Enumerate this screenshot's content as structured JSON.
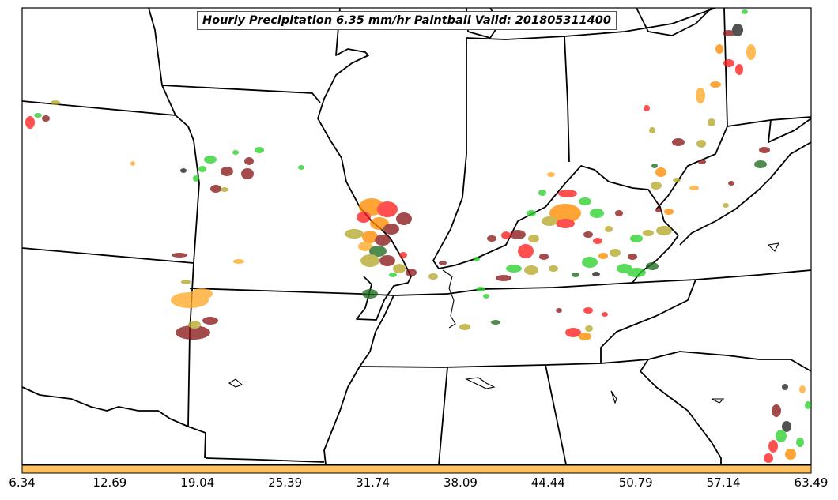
{
  "title": "Hourly Precipitation 6.35 mm/hr Paintball Valid: 201805311400",
  "colorbar": {
    "fill_color": "#ffc061",
    "tick_labels": [
      "6.34",
      "12.69",
      "19.04",
      "25.39",
      "31.74",
      "38.09",
      "44.44",
      "50.79",
      "57.14",
      "63.49"
    ]
  },
  "member_colors": [
    "#ff2020",
    "#ff8c00",
    "#ffa826",
    "#2ed12e",
    "#8b1a1a",
    "#b5a82a",
    "#1f6b1f",
    "#222222"
  ]
}
